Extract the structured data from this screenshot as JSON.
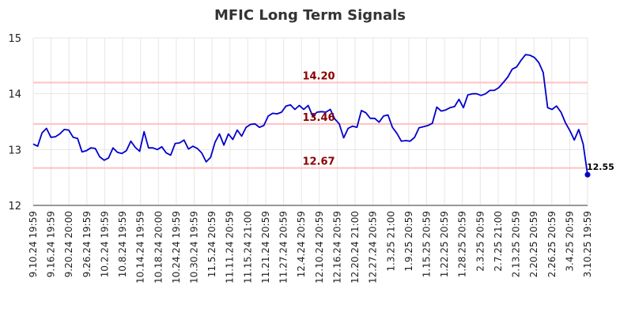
{
  "chart_data": {
    "type": "line",
    "title": "MFIC Long Term Signals",
    "ylim": [
      12,
      15
    ],
    "yticks": [
      "12",
      "13",
      "14",
      "15"
    ],
    "grid": true,
    "line_color": "#0000cc",
    "level_color": "#ffc0c0",
    "level_label_color": "#8b0000",
    "levels": [
      {
        "value": 14.2,
        "label": "14.20"
      },
      {
        "value": 13.46,
        "label": "13.46"
      },
      {
        "value": 12.67,
        "label": "12.67"
      }
    ],
    "last_point": {
      "value": 12.55,
      "label": "12.55"
    },
    "xtick_labels": [
      "9.10.24 19:59",
      "9.16.24 19:59",
      "9.20.24 20:00",
      "9.26.24 19:59",
      "10.2.24 19:59",
      "10.8.24 19:59",
      "10.14.24 19:59",
      "10.18.24 20:00",
      "10.24.24 19:59",
      "10.30.24 19:59",
      "11.5.24 20:59",
      "11.11.24 20:59",
      "11.15.24 21:00",
      "11.21.24 20:59",
      "11.27.24 20:59",
      "12.4.24 20:59",
      "12.10.24 20:59",
      "12.16.24 20:59",
      "12.20.24 21:00",
      "12.27.24 20:59",
      "1.3.25 21:00",
      "1.9.25 20:59",
      "1.15.25 20:59",
      "1.22.25 20:59",
      "1.28.25 20:59",
      "2.3.25 20:59",
      "2.7.25 21:00",
      "2.13.25 20:59",
      "2.20.25 20:59",
      "2.26.25 20:59",
      "3.4.25 20:59",
      "3.10.25 19:59"
    ],
    "values": [
      13.1,
      13.06,
      13.3,
      13.38,
      13.22,
      13.23,
      13.28,
      13.36,
      13.35,
      13.22,
      13.2,
      12.96,
      12.98,
      13.03,
      13.02,
      12.87,
      12.81,
      12.85,
      13.03,
      12.95,
      12.93,
      12.98,
      13.15,
      13.04,
      12.97,
      13.32,
      13.03,
      13.03,
      13.0,
      13.05,
      12.94,
      12.9,
      13.11,
      13.12,
      13.17,
      13.01,
      13.06,
      13.02,
      12.94,
      12.78,
      12.86,
      13.13,
      13.28,
      13.08,
      13.28,
      13.18,
      13.35,
      13.24,
      13.4,
      13.45,
      13.46,
      13.4,
      13.43,
      13.6,
      13.65,
      13.64,
      13.67,
      13.78,
      13.8,
      13.72,
      13.79,
      13.72,
      13.79,
      13.6,
      13.67,
      13.68,
      13.67,
      13.72,
      13.55,
      13.46,
      13.21,
      13.38,
      13.42,
      13.4,
      13.7,
      13.66,
      13.56,
      13.56,
      13.49,
      13.6,
      13.62,
      13.4,
      13.29,
      13.15,
      13.16,
      13.15,
      13.22,
      13.39,
      13.41,
      13.43,
      13.47,
      13.76,
      13.69,
      13.71,
      13.75,
      13.77,
      13.9,
      13.75,
      13.98,
      14.0,
      14.0,
      13.97,
      14.0,
      14.06,
      14.06,
      14.11,
      14.2,
      14.3,
      14.44,
      14.48,
      14.6,
      14.7,
      14.69,
      14.65,
      14.56,
      14.38,
      13.75,
      13.72,
      13.78,
      13.67,
      13.48,
      13.34,
      13.17,
      13.36,
      13.1,
      12.55
    ]
  }
}
